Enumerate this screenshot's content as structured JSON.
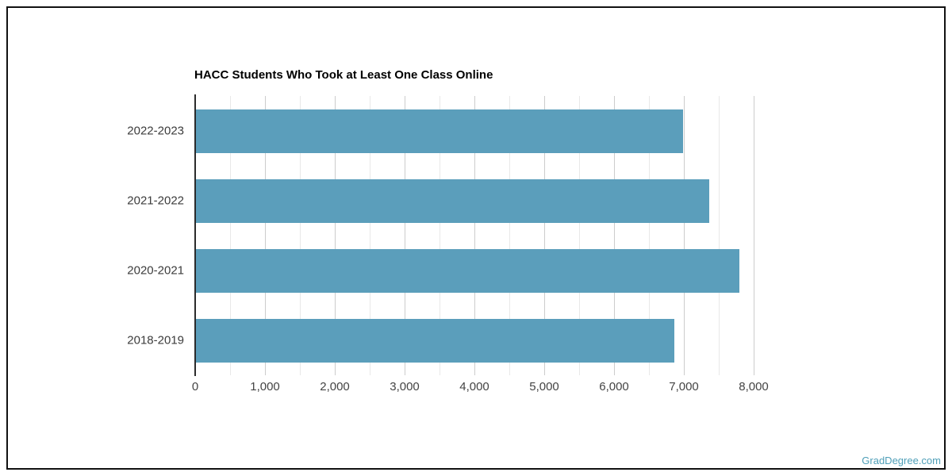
{
  "chart_data": {
    "type": "bar",
    "orientation": "horizontal",
    "title": "HACC Students Who Took at Least One Class Online",
    "categories": [
      "2022-2023",
      "2021-2022",
      "2020-2021",
      "2018-2019"
    ],
    "values": [
      6980,
      7350,
      7780,
      6850
    ],
    "xlabel": "",
    "ylabel": "",
    "xlim": [
      0,
      8000
    ],
    "x_ticks": [
      0,
      1000,
      2000,
      3000,
      4000,
      5000,
      6000,
      7000,
      8000
    ],
    "x_tick_labels": [
      "0",
      "1,000",
      "2,000",
      "3,000",
      "4,000",
      "5,000",
      "6,000",
      "7,000",
      "8,000"
    ],
    "grid_on": true,
    "grid_minor_step": 500,
    "legend": "none",
    "bar_color": "#5b9ebb",
    "grid_major_color": "#cccccc",
    "grid_minor_color": "#e8e8e8",
    "axis_line_color": "#2b2b2b",
    "title_color": "#000000",
    "category_label_color": "#3c3c3c",
    "tick_label_color": "#444444"
  },
  "watermark": {
    "text": "GradDegree.com",
    "color": "#4f9fb8"
  }
}
